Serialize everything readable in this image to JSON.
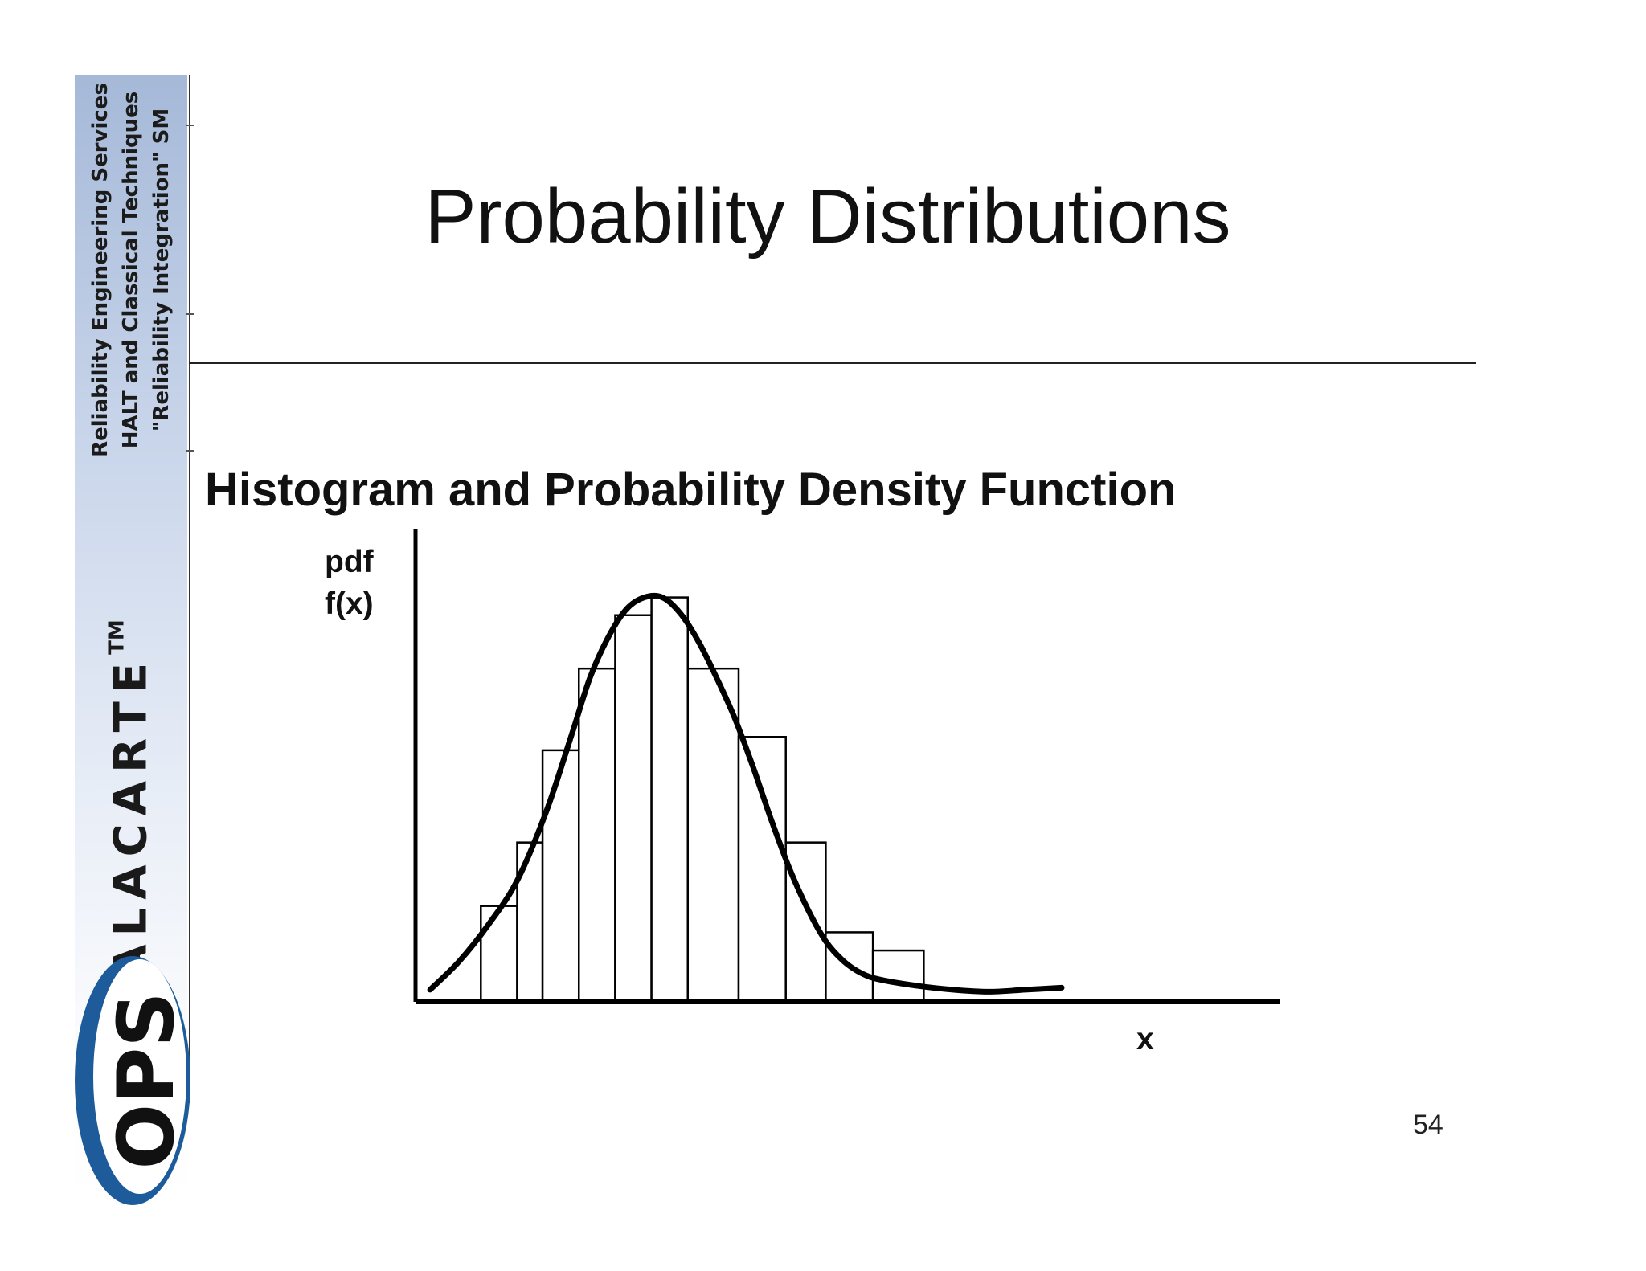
{
  "slide": {
    "title": "Probability Distributions",
    "subtitle": "Histogram and Probability Density Function",
    "page_number": "54"
  },
  "branding": {
    "tagline": [
      "Reliability Engineering Services",
      "HALT and Classical Techniques",
      "\"Reliability Integration\" SM"
    ],
    "wordmark": "ALACARTE",
    "trademark": "TM",
    "logo_text": "OPS",
    "colors": {
      "band": "#a5b9d8",
      "logo_blue": "#1e5b9a",
      "logo_dark": "#111111"
    }
  },
  "chart_data": {
    "type": "bar",
    "y_label_lines": [
      "pdf",
      "f(x)"
    ],
    "xlabel": "x",
    "bars": [
      {
        "x_start": 0.0,
        "x_end": 1.0,
        "height": 0.237
      },
      {
        "x_start": 1.0,
        "x_end": 1.7,
        "height": 0.394
      },
      {
        "x_start": 1.7,
        "x_end": 2.7,
        "height": 0.622
      },
      {
        "x_start": 2.7,
        "x_end": 3.7,
        "height": 0.824
      },
      {
        "x_start": 3.7,
        "x_end": 4.7,
        "height": 0.956
      },
      {
        "x_start": 4.7,
        "x_end": 5.7,
        "height": 1.0
      },
      {
        "x_start": 5.7,
        "x_end": 7.1,
        "height": 0.824
      },
      {
        "x_start": 7.1,
        "x_end": 8.4,
        "height": 0.655
      },
      {
        "x_start": 8.4,
        "x_end": 9.5,
        "height": 0.394
      },
      {
        "x_start": 9.5,
        "x_end": 10.8,
        "height": 0.172
      },
      {
        "x_start": 10.8,
        "x_end": 12.2,
        "height": 0.127
      }
    ],
    "pdf_curve": {
      "x": [
        -1.4,
        -0.6,
        0.2,
        1.0,
        1.8,
        2.5,
        3.0,
        3.5,
        4.0,
        4.5,
        5.0,
        5.5,
        6.0,
        6.5,
        7.0,
        7.5,
        8.0,
        8.5,
        9.0,
        9.5,
        10.0,
        10.5,
        11.0,
        12.0,
        13.0,
        14.0,
        15.0,
        16.0
      ],
      "y": [
        0.03,
        0.1,
        0.19,
        0.3,
        0.47,
        0.66,
        0.8,
        0.9,
        0.97,
        1.0,
        1.0,
        0.96,
        0.89,
        0.8,
        0.7,
        0.58,
        0.45,
        0.33,
        0.23,
        0.15,
        0.1,
        0.07,
        0.055,
        0.04,
        0.03,
        0.025,
        0.03,
        0.035
      ]
    },
    "xlim": [
      -1.8,
      22.0
    ],
    "ylim": [
      0.0,
      1.17
    ],
    "grid": false,
    "legend": "none"
  }
}
